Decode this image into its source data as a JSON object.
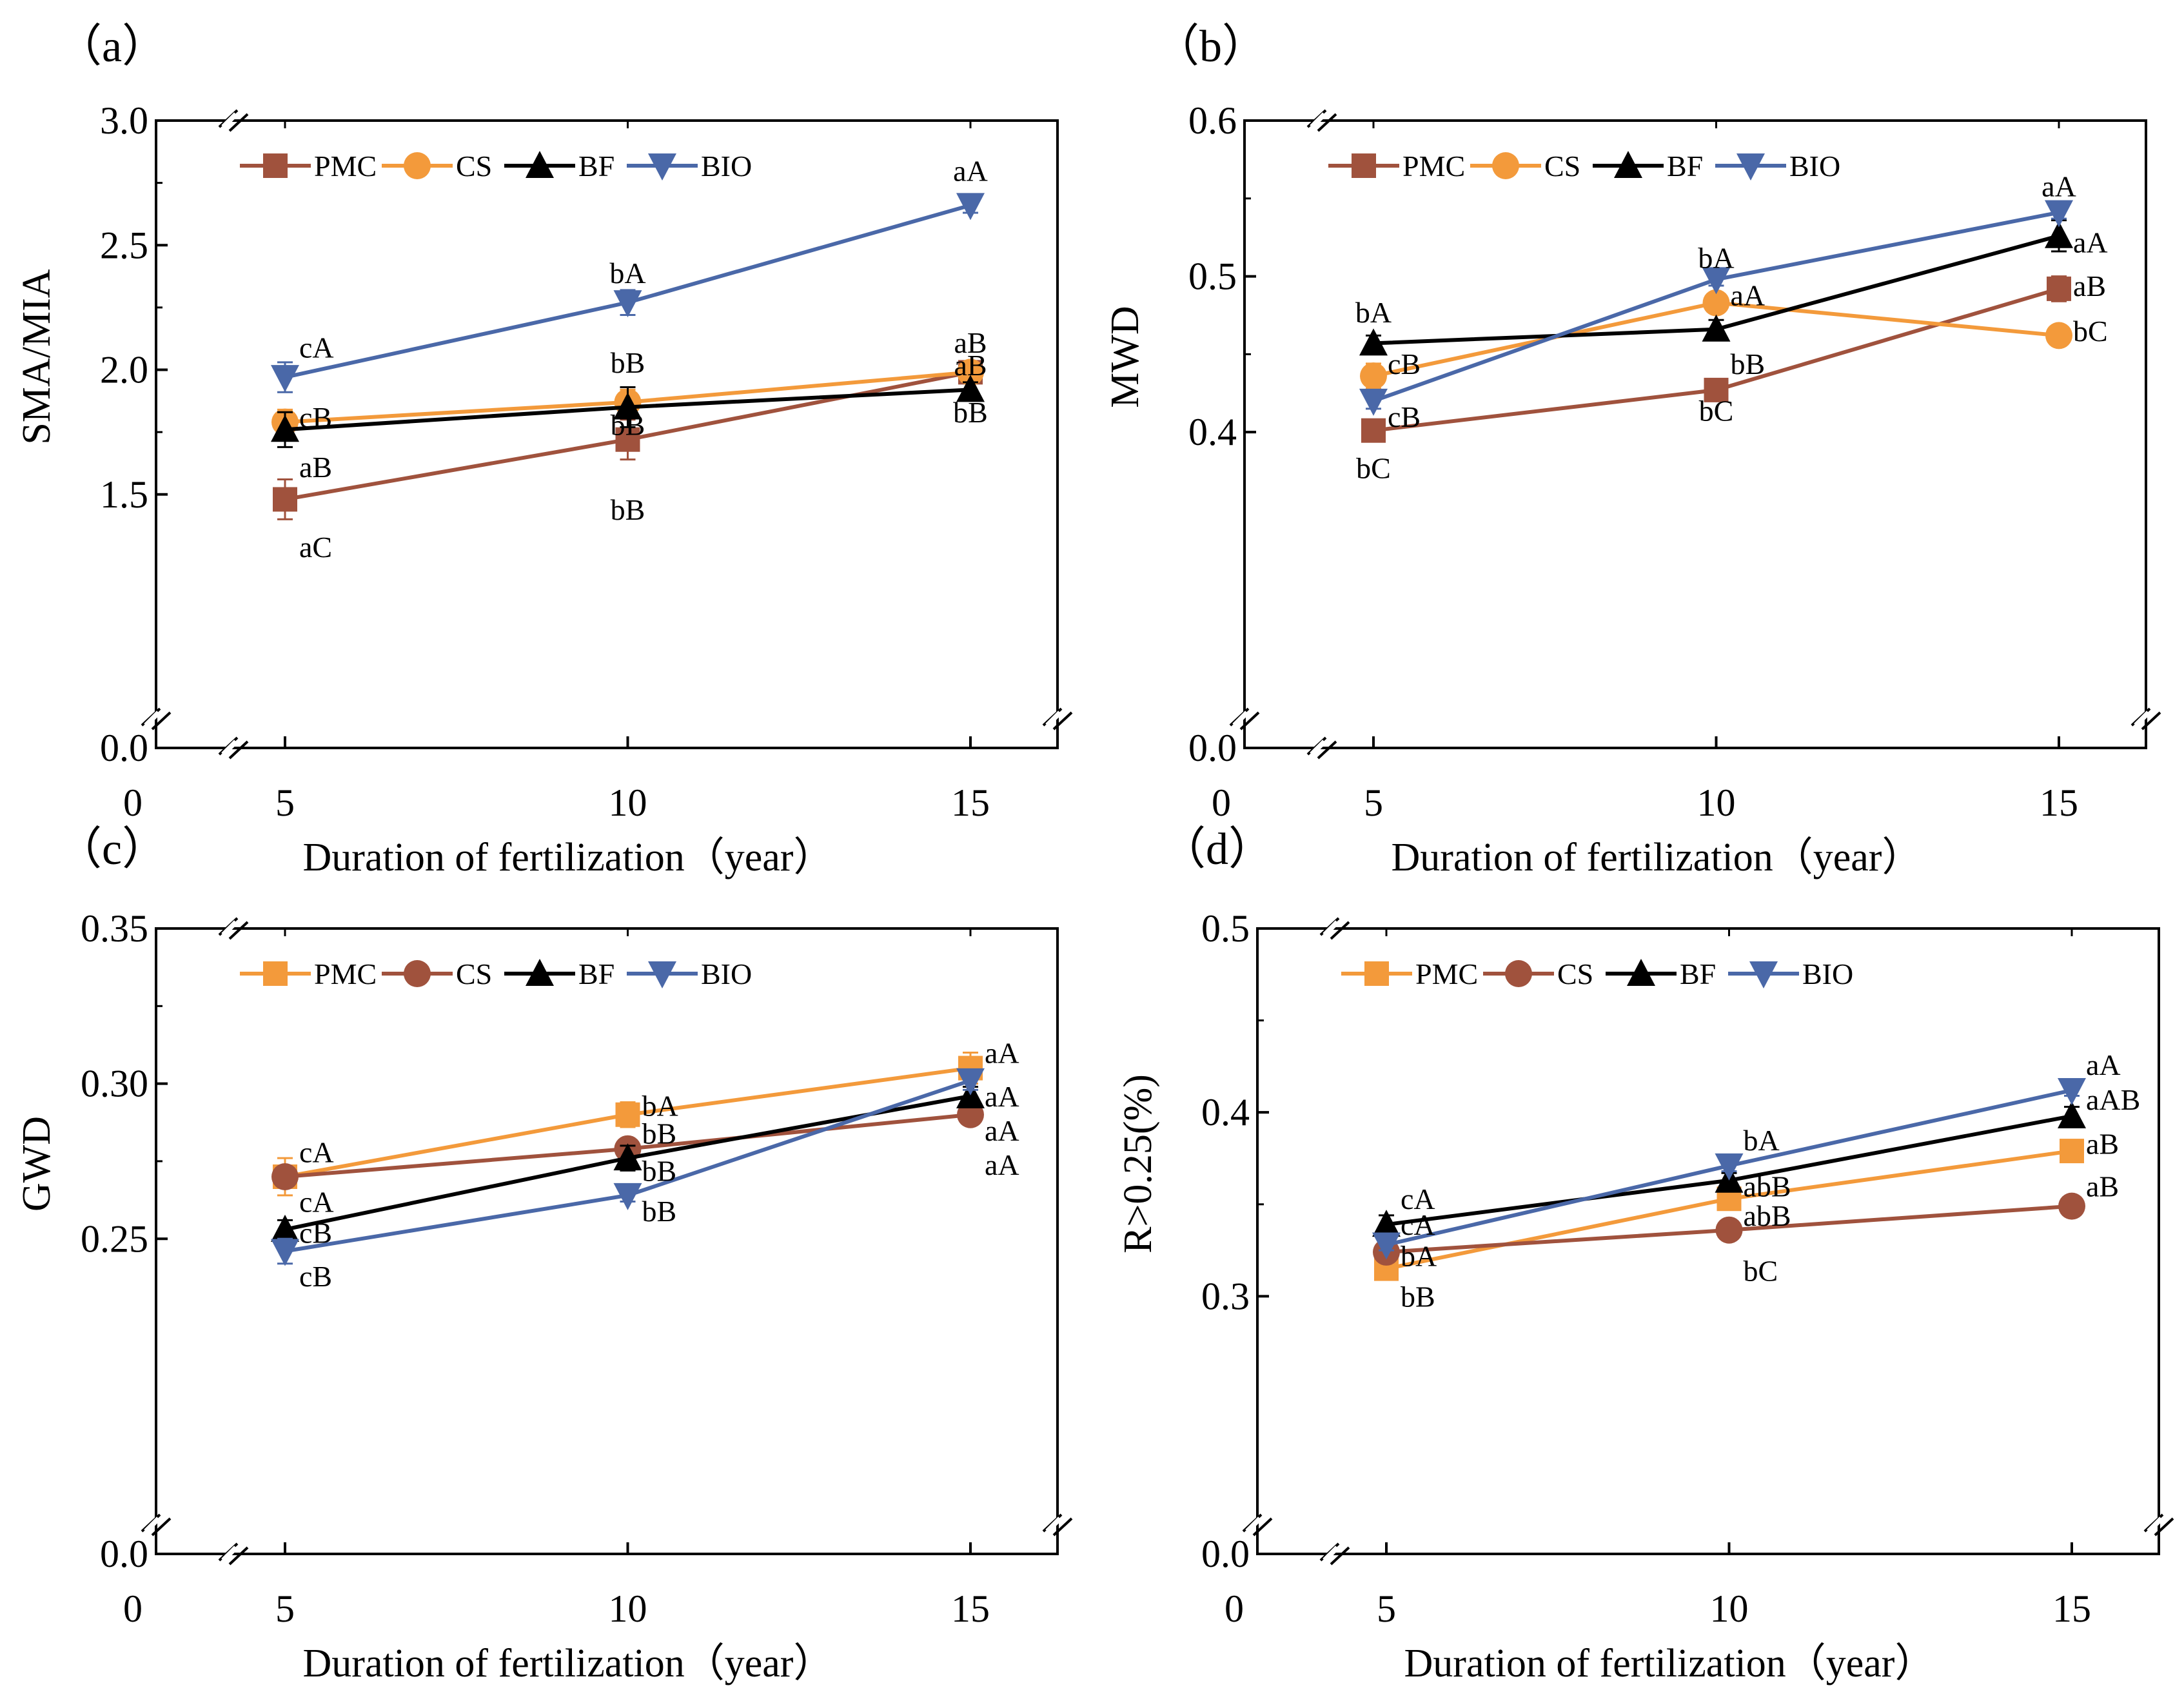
{
  "figure": {
    "panels": [
      {
        "id": "a",
        "panel_label": "（a）"
      },
      {
        "id": "b",
        "panel_label": "（b）"
      },
      {
        "id": "c",
        "panel_label": "（c）"
      },
      {
        "id": "d",
        "panel_label": "（d）"
      }
    ]
  },
  "colors": {
    "brown": "#a0523d",
    "orange": "#f39a3b",
    "black": "#000000",
    "blue": "#4a68a8"
  },
  "chart_data": [
    {
      "id": "a",
      "type": "line",
      "panel_label": "（a）",
      "xlabel": "Duration of  fertilization（year）",
      "ylabel": "SMA/MIA",
      "x_ticks": [
        "0",
        "5",
        "10",
        "15"
      ],
      "y_ticks": [
        "0.0",
        "1.5",
        "2.0",
        "2.5",
        "3.0"
      ],
      "ylim": [
        0.0,
        3.0
      ],
      "broken_y_axis": [
        0.0,
        1.0
      ],
      "x": [
        5,
        10,
        15
      ],
      "series": [
        {
          "name": "PMC",
          "color": "#a0523d",
          "marker": "square",
          "values": [
            1.48,
            1.72,
            1.99
          ],
          "errors": [
            0.08,
            0.08,
            0.03
          ]
        },
        {
          "name": "CS",
          "color": "#f39a3b",
          "marker": "circle",
          "values": [
            1.79,
            1.87,
            1.99
          ],
          "errors": [
            0.05,
            0.05,
            0.03
          ]
        },
        {
          "name": "BF",
          "color": "#000000",
          "marker": "triangle-up",
          "values": [
            1.76,
            1.85,
            1.92
          ],
          "errors": [
            0.07,
            0.08,
            0.03
          ]
        },
        {
          "name": "BIO",
          "color": "#4a68a8",
          "marker": "triangle-down",
          "values": [
            1.97,
            2.27,
            2.66
          ],
          "errors": [
            0.06,
            0.05,
            0.03
          ]
        }
      ],
      "annotations": [
        {
          "text": "aA",
          "x": 15,
          "y": 2.8,
          "anchor": "middle"
        },
        {
          "text": "bA",
          "x": 10,
          "y": 2.39,
          "anchor": "middle"
        },
        {
          "text": "cA",
          "x": 5,
          "y": 2.09,
          "anchor": "start"
        },
        {
          "text": "aB",
          "x": 15,
          "y": 2.11,
          "anchor": "middle"
        },
        {
          "text": "aB",
          "x": 15,
          "y": 2.02,
          "anchor": "middle"
        },
        {
          "text": "bB",
          "x": 10,
          "y": 2.03,
          "anchor": "middle"
        },
        {
          "text": "cB",
          "x": 5,
          "y": 1.81,
          "anchor": "start"
        },
        {
          "text": "bB",
          "x": 10,
          "y": 1.78,
          "anchor": "middle"
        },
        {
          "text": "bB",
          "x": 15,
          "y": 1.83,
          "anchor": "middle"
        },
        {
          "text": "aB",
          "x": 5,
          "y": 1.61,
          "anchor": "start"
        },
        {
          "text": "bB",
          "x": 10,
          "y": 1.44,
          "anchor": "middle"
        },
        {
          "text": "aC",
          "x": 5,
          "y": 1.29,
          "anchor": "start"
        }
      ]
    },
    {
      "id": "b",
      "type": "line",
      "panel_label": "（b）",
      "xlabel": "Duration of  fertilization（year）",
      "ylabel": "MWD",
      "x_ticks": [
        "0",
        "5",
        "10",
        "15"
      ],
      "y_ticks": [
        "0.0",
        "0.4",
        "0.5",
        "0.6"
      ],
      "ylim": [
        0.0,
        0.6
      ],
      "broken_y_axis": [
        0.0,
        0.28
      ],
      "x": [
        5,
        10,
        15
      ],
      "series": [
        {
          "name": "PMC",
          "color": "#a0523d",
          "marker": "square",
          "values": [
            0.401,
            0.427,
            0.492
          ],
          "errors": [
            0.006,
            0.005,
            0.008
          ]
        },
        {
          "name": "CS",
          "color": "#f39a3b",
          "marker": "circle",
          "values": [
            0.436,
            0.483,
            0.462
          ],
          "errors": [
            0.008,
            0.006,
            0.004
          ]
        },
        {
          "name": "BF",
          "color": "#000000",
          "marker": "triangle-up",
          "values": [
            0.457,
            0.466,
            0.526
          ],
          "errors": [
            0.005,
            0.006,
            0.01
          ]
        },
        {
          "name": "BIO",
          "color": "#4a68a8",
          "marker": "triangle-down",
          "values": [
            0.42,
            0.498,
            0.541
          ],
          "errors": [
            0.005,
            0.004,
            0.004
          ]
        }
      ],
      "annotations": [
        {
          "text": "aA",
          "x": 15,
          "y": 0.558,
          "anchor": "middle"
        },
        {
          "text": "bA",
          "x": 10,
          "y": 0.512,
          "anchor": "middle"
        },
        {
          "text": "aA",
          "x": 15,
          "y": 0.522,
          "anchor": "start"
        },
        {
          "text": "bA",
          "x": 5,
          "y": 0.477,
          "anchor": "middle"
        },
        {
          "text": "aA",
          "x": 10,
          "y": 0.488,
          "anchor": "start"
        },
        {
          "text": "aB",
          "x": 15,
          "y": 0.494,
          "anchor": "start"
        },
        {
          "text": "cB",
          "x": 5,
          "y": 0.444,
          "anchor": "start"
        },
        {
          "text": "bB",
          "x": 10,
          "y": 0.444,
          "anchor": "start"
        },
        {
          "text": "bC",
          "x": 15,
          "y": 0.465,
          "anchor": "start"
        },
        {
          "text": "cB",
          "x": 5,
          "y": 0.41,
          "anchor": "start"
        },
        {
          "text": "bC",
          "x": 10,
          "y": 0.414,
          "anchor": "middle"
        },
        {
          "text": "bC",
          "x": 5,
          "y": 0.377,
          "anchor": "middle"
        }
      ]
    },
    {
      "id": "c",
      "type": "line",
      "panel_label": "（c）",
      "xlabel": "Duration of  fertilization（year）",
      "ylabel": "GWD",
      "x_ticks": [
        "0",
        "5",
        "10",
        "15"
      ],
      "y_ticks": [
        "0.0",
        "0.25",
        "0.30",
        "0.35"
      ],
      "ylim": [
        0.0,
        0.35
      ],
      "broken_y_axis": [
        0.0,
        0.19
      ],
      "x": [
        5,
        10,
        15
      ],
      "series": [
        {
          "name": "PMC",
          "color": "#f39a3b",
          "marker": "square",
          "values": [
            0.27,
            0.29,
            0.305
          ],
          "errors": [
            0.006,
            0.004,
            0.005
          ]
        },
        {
          "name": "CS",
          "color": "#a0523d",
          "marker": "circle",
          "values": [
            0.27,
            0.279,
            0.29
          ],
          "errors": [
            0.003,
            0.003,
            0.003
          ]
        },
        {
          "name": "BF",
          "color": "#000000",
          "marker": "triangle-up",
          "values": [
            0.253,
            0.276,
            0.296
          ],
          "errors": [
            0.003,
            0.004,
            0.003
          ]
        },
        {
          "name": "BIO",
          "color": "#4a68a8",
          "marker": "triangle-down",
          "values": [
            0.246,
            0.264,
            0.301
          ],
          "errors": [
            0.004,
            0.002,
            0.003
          ]
        }
      ],
      "annotations": [
        {
          "text": "aA",
          "x": 15,
          "y": 0.31,
          "anchor": "start"
        },
        {
          "text": "bA",
          "x": 10,
          "y": 0.293,
          "anchor": "start"
        },
        {
          "text": "aA",
          "x": 15,
          "y": 0.296,
          "anchor": "start"
        },
        {
          "text": "aA",
          "x": 15,
          "y": 0.285,
          "anchor": "start"
        },
        {
          "text": "bB",
          "x": 10,
          "y": 0.284,
          "anchor": "start"
        },
        {
          "text": "cA",
          "x": 5,
          "y": 0.278,
          "anchor": "start"
        },
        {
          "text": "aA",
          "x": 15,
          "y": 0.274,
          "anchor": "start"
        },
        {
          "text": "bB",
          "x": 10,
          "y": 0.272,
          "anchor": "start"
        },
        {
          "text": "cA",
          "x": 5,
          "y": 0.262,
          "anchor": "start"
        },
        {
          "text": "cB",
          "x": 5,
          "y": 0.252,
          "anchor": "start"
        },
        {
          "text": "bB",
          "x": 10,
          "y": 0.259,
          "anchor": "start"
        },
        {
          "text": "cB",
          "x": 5,
          "y": 0.238,
          "anchor": "start"
        }
      ]
    },
    {
      "id": "d",
      "type": "line",
      "panel_label": "（d）",
      "xlabel": "Duration of  fertilization（year）",
      "ylabel": "R>0.25(%)",
      "x_ticks": [
        "0",
        "5",
        "10",
        "15"
      ],
      "y_ticks": [
        "0.0",
        "0.3",
        "0.4",
        "0.5"
      ],
      "ylim": [
        0.0,
        0.5
      ],
      "broken_y_axis": [
        0.0,
        0.23
      ],
      "x": [
        5,
        10,
        15
      ],
      "series": [
        {
          "name": "PMC",
          "color": "#f39a3b",
          "marker": "square",
          "values": [
            0.315,
            0.353,
            0.379
          ],
          "errors": [
            0.005,
            0.004,
            0.003
          ]
        },
        {
          "name": "CS",
          "color": "#a0523d",
          "marker": "circle",
          "values": [
            0.324,
            0.336,
            0.349
          ],
          "errors": [
            0.003,
            0.003,
            0.003
          ]
        },
        {
          "name": "BF",
          "color": "#000000",
          "marker": "triangle-up",
          "values": [
            0.339,
            0.363,
            0.398
          ],
          "errors": [
            0.005,
            0.004,
            0.005
          ]
        },
        {
          "name": "BIO",
          "color": "#4a68a8",
          "marker": "triangle-down",
          "values": [
            0.328,
            0.371,
            0.412
          ],
          "errors": [
            0.003,
            0.003,
            0.003
          ]
        }
      ],
      "annotations": [
        {
          "text": "aA",
          "x": 15,
          "y": 0.426,
          "anchor": "start"
        },
        {
          "text": "aAB",
          "x": 15,
          "y": 0.407,
          "anchor": "start"
        },
        {
          "text": "bA",
          "x": 10,
          "y": 0.385,
          "anchor": "start"
        },
        {
          "text": "aB",
          "x": 15,
          "y": 0.383,
          "anchor": "start"
        },
        {
          "text": "aB",
          "x": 15,
          "y": 0.36,
          "anchor": "start"
        },
        {
          "text": "cA",
          "x": 5,
          "y": 0.353,
          "anchor": "start"
        },
        {
          "text": "abB",
          "x": 10,
          "y": 0.36,
          "anchor": "start"
        },
        {
          "text": "cA",
          "x": 5,
          "y": 0.339,
          "anchor": "start"
        },
        {
          "text": "abB",
          "x": 10,
          "y": 0.344,
          "anchor": "start"
        },
        {
          "text": "bA",
          "x": 5,
          "y": 0.322,
          "anchor": "start"
        },
        {
          "text": "bC",
          "x": 10,
          "y": 0.314,
          "anchor": "start"
        },
        {
          "text": "bB",
          "x": 5,
          "y": 0.3,
          "anchor": "start"
        }
      ]
    }
  ]
}
